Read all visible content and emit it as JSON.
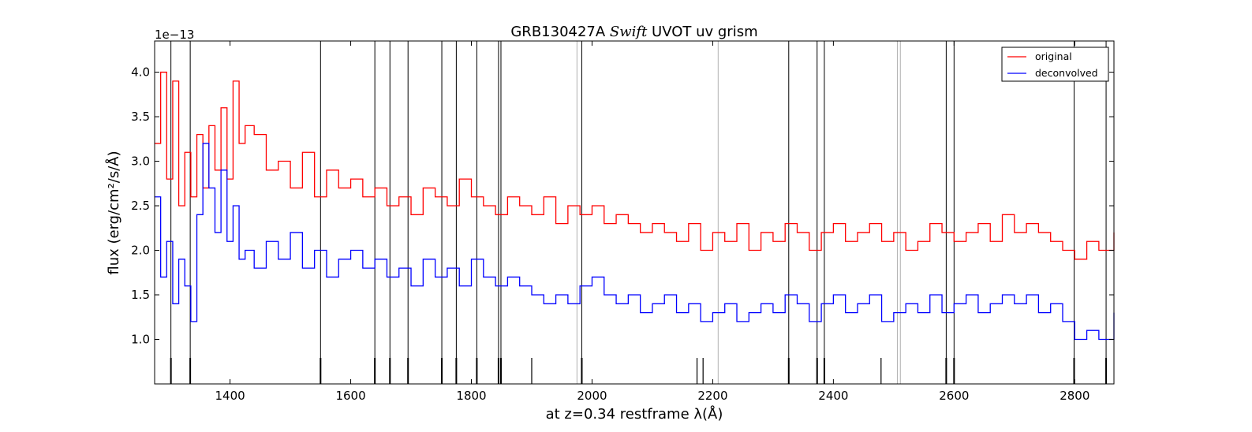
{
  "chart_data": {
    "type": "line",
    "title_parts": [
      "GRB130427A ",
      "Swift",
      " UVOT uv grism"
    ],
    "xlabel": "at z=0.34 restframe λ(Å)",
    "ylabel": "flux (erg/cm²/s/Å)",
    "y_multiplier": "1e−13",
    "xlim": [
      1275,
      2865
    ],
    "ylim": [
      0.5,
      4.35
    ],
    "x_ticks": [
      1400,
      1600,
      1800,
      2000,
      2200,
      2400,
      2600,
      2800
    ],
    "x_tick_labels": [
      "1400",
      "1600",
      "1800",
      "2000",
      "2200",
      "2400",
      "2600",
      "2800"
    ],
    "y_ticks": [
      1.0,
      1.5,
      2.0,
      2.5,
      3.0,
      3.5,
      4.0
    ],
    "y_tick_labels": [
      "1.0",
      "1.5",
      "2.0",
      "2.5",
      "3.0",
      "3.5",
      "4.0"
    ],
    "legend_position": "top-right",
    "series": [
      {
        "name": "original",
        "color": "#ff0000",
        "x": [
          1275,
          1285,
          1295,
          1305,
          1315,
          1325,
          1335,
          1345,
          1355,
          1365,
          1375,
          1385,
          1395,
          1405,
          1415,
          1425,
          1440,
          1460,
          1480,
          1500,
          1520,
          1540,
          1560,
          1580,
          1600,
          1620,
          1640,
          1660,
          1680,
          1700,
          1720,
          1740,
          1760,
          1780,
          1800,
          1820,
          1840,
          1860,
          1880,
          1900,
          1920,
          1940,
          1960,
          1980,
          2000,
          2020,
          2040,
          2060,
          2080,
          2100,
          2120,
          2140,
          2160,
          2180,
          2200,
          2220,
          2240,
          2260,
          2280,
          2300,
          2320,
          2340,
          2360,
          2380,
          2400,
          2420,
          2440,
          2460,
          2480,
          2500,
          2520,
          2540,
          2560,
          2580,
          2600,
          2620,
          2640,
          2660,
          2680,
          2700,
          2720,
          2740,
          2760,
          2780,
          2800,
          2820,
          2840,
          2865
        ],
        "values": [
          3.2,
          4.0,
          2.8,
          3.9,
          2.5,
          3.1,
          2.6,
          3.3,
          2.7,
          3.4,
          2.9,
          3.6,
          2.8,
          3.9,
          3.2,
          3.4,
          3.3,
          2.9,
          3.0,
          2.7,
          3.1,
          2.6,
          2.9,
          2.7,
          2.8,
          2.6,
          2.7,
          2.5,
          2.6,
          2.4,
          2.7,
          2.6,
          2.5,
          2.8,
          2.6,
          2.5,
          2.4,
          2.6,
          2.5,
          2.4,
          2.6,
          2.3,
          2.5,
          2.4,
          2.5,
          2.3,
          2.4,
          2.3,
          2.2,
          2.3,
          2.2,
          2.1,
          2.3,
          2.0,
          2.2,
          2.1,
          2.3,
          2.0,
          2.2,
          2.1,
          2.3,
          2.2,
          2.0,
          2.2,
          2.3,
          2.1,
          2.2,
          2.3,
          2.1,
          2.2,
          2.0,
          2.1,
          2.3,
          2.2,
          2.1,
          2.2,
          2.3,
          2.1,
          2.4,
          2.2,
          2.3,
          2.2,
          2.1,
          2.0,
          1.9,
          2.1,
          2.0,
          2.2
        ]
      },
      {
        "name": "deconvolved",
        "color": "#0000ff",
        "x": [
          1275,
          1285,
          1295,
          1305,
          1315,
          1325,
          1335,
          1345,
          1355,
          1365,
          1375,
          1385,
          1395,
          1405,
          1415,
          1425,
          1440,
          1460,
          1480,
          1500,
          1520,
          1540,
          1560,
          1580,
          1600,
          1620,
          1640,
          1660,
          1680,
          1700,
          1720,
          1740,
          1760,
          1780,
          1800,
          1820,
          1840,
          1860,
          1880,
          1900,
          1920,
          1940,
          1960,
          1980,
          2000,
          2020,
          2040,
          2060,
          2080,
          2100,
          2120,
          2140,
          2160,
          2180,
          2200,
          2220,
          2240,
          2260,
          2280,
          2300,
          2320,
          2340,
          2360,
          2380,
          2400,
          2420,
          2440,
          2460,
          2480,
          2500,
          2520,
          2540,
          2560,
          2580,
          2600,
          2620,
          2640,
          2660,
          2680,
          2700,
          2720,
          2740,
          2760,
          2780,
          2800,
          2820,
          2840,
          2865
        ],
        "values": [
          2.6,
          1.7,
          2.1,
          1.4,
          1.9,
          1.6,
          1.2,
          2.4,
          3.2,
          2.7,
          2.2,
          2.9,
          2.1,
          2.5,
          1.9,
          2.0,
          1.8,
          2.1,
          1.9,
          2.2,
          1.8,
          2.0,
          1.7,
          1.9,
          2.0,
          1.8,
          1.9,
          1.7,
          1.8,
          1.6,
          1.9,
          1.7,
          1.8,
          1.6,
          1.9,
          1.7,
          1.6,
          1.7,
          1.6,
          1.5,
          1.4,
          1.5,
          1.4,
          1.6,
          1.7,
          1.5,
          1.4,
          1.5,
          1.3,
          1.4,
          1.5,
          1.3,
          1.4,
          1.2,
          1.3,
          1.4,
          1.2,
          1.3,
          1.4,
          1.3,
          1.5,
          1.4,
          1.2,
          1.4,
          1.5,
          1.3,
          1.4,
          1.5,
          1.2,
          1.3,
          1.4,
          1.3,
          1.5,
          1.3,
          1.4,
          1.5,
          1.3,
          1.4,
          1.5,
          1.4,
          1.5,
          1.3,
          1.4,
          1.2,
          1.0,
          1.1,
          1.0,
          1.3
        ]
      }
    ],
    "vertical_lines_dark": [
      1302,
      1334,
      1550,
      1640,
      1665,
      1695,
      1751,
      1775,
      1809,
      1845,
      1849,
      1983,
      2326,
      2373,
      2385,
      2587,
      2600,
      2799,
      2852
    ],
    "vertical_lines_light": [
      1975,
      2209,
      2506,
      2511
    ],
    "short_ticks_only": [
      1900,
      2174,
      2184,
      2479
    ]
  }
}
